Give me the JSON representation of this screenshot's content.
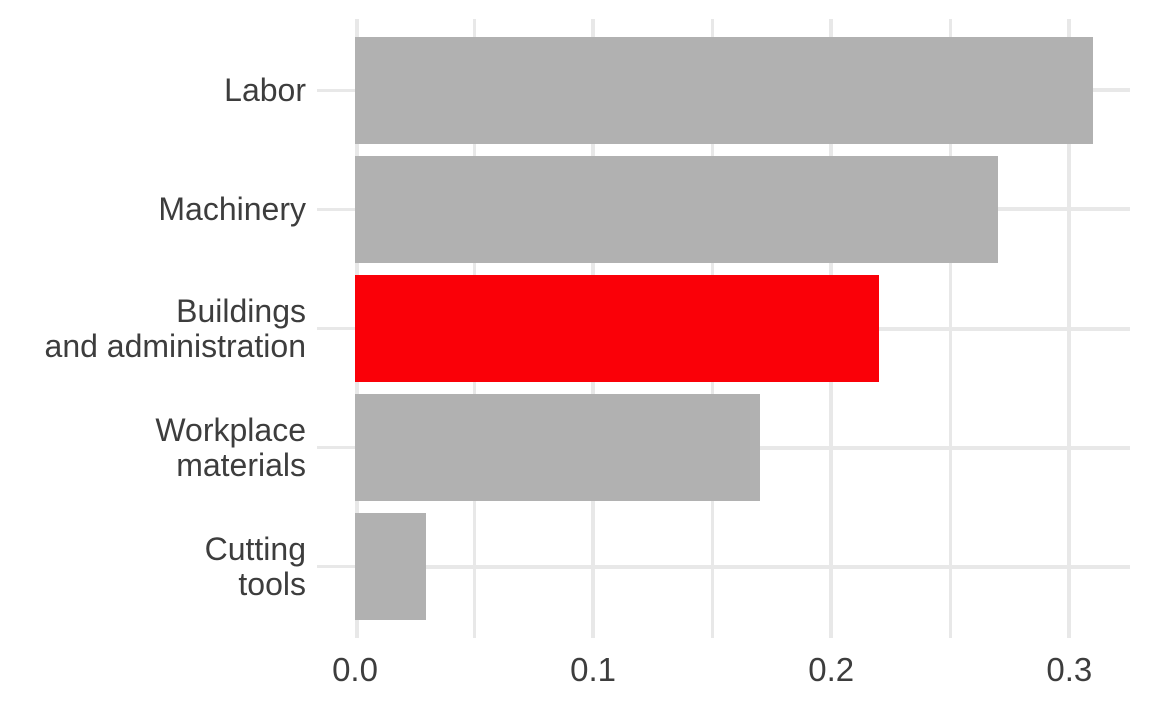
{
  "chart_data": {
    "type": "bar",
    "orientation": "horizontal",
    "title": "",
    "xlabel": "",
    "ylabel": "",
    "categories": [
      "Labor",
      "Machinery",
      "Buildings and administration",
      "Workplace materials",
      "Cutting tools"
    ],
    "category_label_lines": [
      [
        "Labor"
      ],
      [
        "Machinery"
      ],
      [
        "Buildings",
        "and administration"
      ],
      [
        "Workplace",
        "materials"
      ],
      [
        "Cutting",
        "tools"
      ]
    ],
    "values": [
      0.31,
      0.27,
      0.22,
      0.17,
      0.03
    ],
    "bar_colors": [
      "#b1b1b1",
      "#b1b1b1",
      "#fa0008",
      "#b1b1b1",
      "#b1b1b1"
    ],
    "highlighted_category": "Buildings and administration",
    "x_major_ticks": [
      0.0,
      0.1,
      0.2,
      0.3
    ],
    "x_tick_labels": [
      "0.0",
      "0.1",
      "0.2",
      "0.3"
    ],
    "x_minor_ticks": [
      0.05,
      0.15,
      0.25
    ],
    "xlim": [
      0,
      0.3255
    ],
    "grid": true,
    "legend": "none",
    "colors": {
      "bar_default": "#b1b1b1",
      "bar_highlight": "#fa0008",
      "gridline": "#e8e8e8",
      "text": "#3d3d3d",
      "background": "#ffffff"
    }
  }
}
